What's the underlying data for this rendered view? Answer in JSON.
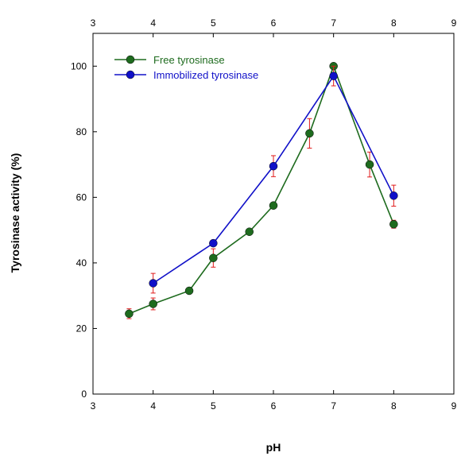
{
  "chart_data": {
    "type": "line",
    "xlabel": "pH",
    "ylabel": "Tyrosinase activity (%)",
    "xlim": [
      3,
      9
    ],
    "ylim": [
      0,
      110
    ],
    "xticks": [
      3,
      4,
      5,
      6,
      7,
      8,
      9
    ],
    "yticks": [
      0,
      20,
      40,
      60,
      80,
      100
    ],
    "x_tick_labels": [
      "3",
      "4",
      "5",
      "6",
      "7",
      "8",
      "9"
    ],
    "y_tick_labels": [
      "0",
      "20",
      "40",
      "60",
      "80",
      "100"
    ],
    "top_axis_mirrored": true,
    "grid": false,
    "legend_position": "top-left",
    "series": [
      {
        "name": "Free tyrosinase",
        "color": "#1e6b1e",
        "points": [
          {
            "x": 3.6,
            "y": 24.5,
            "err": 1.5
          },
          {
            "x": 4.0,
            "y": 27.5,
            "err": 1.8
          },
          {
            "x": 4.6,
            "y": 31.5,
            "err": 0
          },
          {
            "x": 5.0,
            "y": 41.5,
            "err": 2.8
          },
          {
            "x": 5.6,
            "y": 49.5,
            "err": 0
          },
          {
            "x": 6.0,
            "y": 57.5,
            "err": 0
          },
          {
            "x": 6.6,
            "y": 79.5,
            "err": 4.5
          },
          {
            "x": 7.0,
            "y": 100.0,
            "err": 0
          },
          {
            "x": 7.6,
            "y": 70.0,
            "err": 3.8
          },
          {
            "x": 8.0,
            "y": 51.8,
            "err": 1.2
          }
        ]
      },
      {
        "name": "Immobilized tyrosinase",
        "color": "#1010c8",
        "points": [
          {
            "x": 4.0,
            "y": 33.8,
            "err": 3.0
          },
          {
            "x": 5.0,
            "y": 46.0,
            "err": 0
          },
          {
            "x": 6.0,
            "y": 69.5,
            "err": 3.2
          },
          {
            "x": 7.0,
            "y": 97.0,
            "err": 3.0
          },
          {
            "x": 8.0,
            "y": 60.5,
            "err": 3.2
          }
        ]
      }
    ],
    "errorbar_color": "#e01a1a"
  }
}
